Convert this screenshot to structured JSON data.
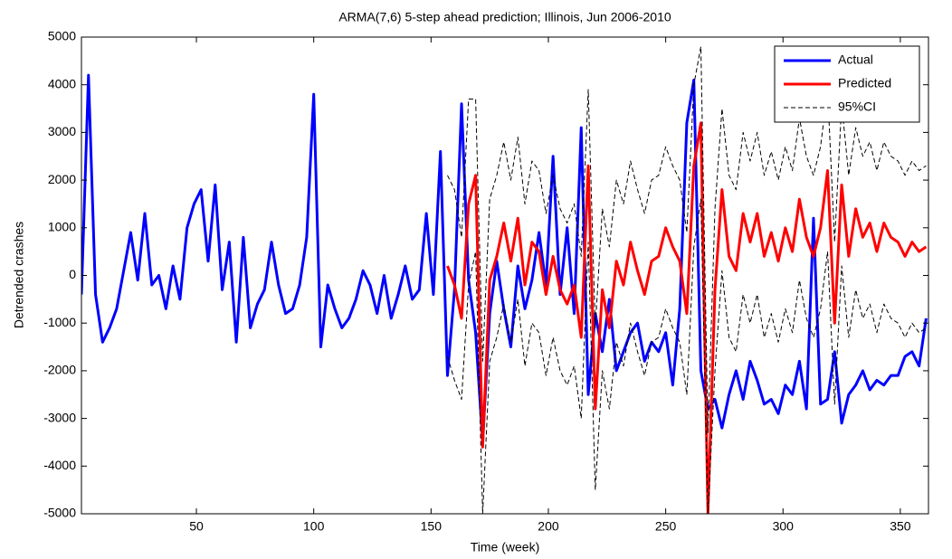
{
  "chart_data": {
    "type": "line",
    "title": "ARMA(7,6) 5-step ahead prediction; Illinois, Jun 2006-2010",
    "x_label": "Time (week)",
    "y_label": "Detrended crashes",
    "xlim": [
      1,
      362
    ],
    "xticks": [
      50,
      100,
      150,
      200,
      250,
      300,
      350
    ],
    "ylim": [
      -5000,
      5000
    ],
    "yticks": [
      -5000,
      -4000,
      -3000,
      -2000,
      -1000,
      0,
      1000,
      2000,
      3000,
      4000,
      5000
    ],
    "legend": "upper right",
    "x": [
      1,
      4,
      7,
      10,
      13,
      16,
      19,
      22,
      25,
      28,
      31,
      34,
      37,
      40,
      43,
      46,
      49,
      52,
      55,
      58,
      61,
      64,
      67,
      70,
      73,
      76,
      79,
      82,
      85,
      88,
      91,
      94,
      97,
      100,
      103,
      106,
      109,
      112,
      115,
      118,
      121,
      124,
      127,
      130,
      133,
      136,
      139,
      142,
      145,
      148,
      151,
      154,
      157,
      160,
      163,
      166,
      169,
      172,
      175,
      178,
      181,
      184,
      187,
      190,
      193,
      196,
      199,
      202,
      205,
      208,
      211,
      214,
      217,
      220,
      223,
      226,
      229,
      232,
      235,
      238,
      241,
      244,
      247,
      250,
      253,
      256,
      259,
      262,
      265,
      268,
      271,
      274,
      277,
      280,
      283,
      286,
      289,
      292,
      295,
      298,
      301,
      304,
      307,
      310,
      313,
      316,
      319,
      322,
      325,
      328,
      331,
      334,
      337,
      340,
      343,
      346,
      349,
      352,
      355,
      358,
      361
    ],
    "series": [
      {
        "name": "Actual",
        "color": "#0000ff",
        "dash": "solid",
        "width": 3,
        "values": [
          -400,
          4200,
          -400,
          -1400,
          -1100,
          -700,
          100,
          900,
          -100,
          1300,
          -200,
          0,
          -700,
          200,
          -500,
          1000,
          1500,
          1800,
          300,
          1900,
          -300,
          700,
          -1400,
          800,
          -1100,
          -600,
          -300,
          700,
          -200,
          -800,
          -700,
          -200,
          800,
          3800,
          -1500,
          -200,
          -700,
          -1100,
          -900,
          -500,
          100,
          -200,
          -800,
          0,
          -900,
          -400,
          200,
          -500,
          -300,
          1300,
          -400,
          2600,
          -2100,
          -300,
          3600,
          -100,
          -1200,
          -3500,
          -800,
          300,
          -700,
          -1500,
          200,
          -700,
          -100,
          900,
          -200,
          2500,
          -400,
          1000,
          -800,
          3100,
          -2500,
          -800,
          -1600,
          -500,
          -2000,
          -1600,
          -1200,
          -1000,
          -1800,
          -1400,
          -1600,
          -1200,
          -2300,
          -700,
          3200,
          4100,
          -2000,
          -2800,
          -2600,
          -3200,
          -2500,
          -2000,
          -2600,
          -1800,
          -2200,
          -2700,
          -2600,
          -2900,
          -2300,
          -2500,
          -1800,
          -2800,
          1200,
          -2700,
          -2600,
          -1600,
          -3100,
          -2500,
          -2300,
          -2000,
          -2400,
          -2200,
          -2300,
          -2100,
          -2100,
          -1700,
          -1600,
          -1900,
          -900
        ]
      },
      {
        "name": "Predicted",
        "color": "#ff0000",
        "dash": "solid",
        "width": 3,
        "values": [
          null,
          null,
          null,
          null,
          null,
          null,
          null,
          null,
          null,
          null,
          null,
          null,
          null,
          null,
          null,
          null,
          null,
          null,
          null,
          null,
          null,
          null,
          null,
          null,
          null,
          null,
          null,
          null,
          null,
          null,
          null,
          null,
          null,
          null,
          null,
          null,
          null,
          null,
          null,
          null,
          null,
          null,
          null,
          null,
          null,
          null,
          null,
          null,
          null,
          null,
          null,
          null,
          200,
          -200,
          -900,
          1500,
          2100,
          -3600,
          -100,
          400,
          1100,
          300,
          1200,
          -200,
          700,
          500,
          -400,
          400,
          -300,
          -600,
          -200,
          -1300,
          2300,
          -2800,
          -300,
          -1100,
          300,
          -200,
          700,
          100,
          -400,
          300,
          400,
          1000,
          600,
          300,
          -800,
          2300,
          3200,
          -5000,
          -300,
          1800,
          400,
          100,
          1300,
          700,
          1300,
          400,
          900,
          300,
          1000,
          500,
          1600,
          800,
          400,
          1000,
          2200,
          -1000,
          1900,
          400,
          1400,
          800,
          1100,
          500,
          1100,
          800,
          700,
          400,
          700,
          500,
          600
        ]
      },
      {
        "name": "95%CI",
        "color": "#000000",
        "dash": "dashed",
        "width": 1,
        "values": [
          null,
          null,
          null,
          null,
          null,
          null,
          null,
          null,
          null,
          null,
          null,
          null,
          null,
          null,
          null,
          null,
          null,
          null,
          null,
          null,
          null,
          null,
          null,
          null,
          null,
          null,
          null,
          null,
          null,
          null,
          null,
          null,
          null,
          null,
          null,
          null,
          null,
          null,
          null,
          null,
          null,
          null,
          null,
          null,
          null,
          null,
          null,
          null,
          null,
          null,
          null,
          null,
          2100,
          1800,
          800,
          3700,
          3700,
          -1800,
          1600,
          2100,
          2800,
          2000,
          2900,
          1500,
          2400,
          2200,
          1300,
          2100,
          1400,
          1100,
          1500,
          400,
          3900,
          -1100,
          1400,
          600,
          2000,
          1500,
          2400,
          1800,
          1300,
          2000,
          2100,
          2700,
          2300,
          2000,
          900,
          4000,
          4800,
          -3300,
          1400,
          3500,
          2100,
          1800,
          3000,
          2400,
          3000,
          2100,
          2600,
          2000,
          2700,
          2200,
          3300,
          2500,
          2100,
          2700,
          3900,
          700,
          3600,
          2100,
          3100,
          2500,
          2800,
          2200,
          2800,
          2500,
          2400,
          2100,
          2400,
          2200,
          2300
        ]
      },
      {
        "color": "#000000",
        "dash": "dashed",
        "width": 1,
        "values": [
          null,
          null,
          null,
          null,
          null,
          null,
          null,
          null,
          null,
          null,
          null,
          null,
          null,
          null,
          null,
          null,
          null,
          null,
          null,
          null,
          null,
          null,
          null,
          null,
          null,
          null,
          null,
          null,
          null,
          null,
          null,
          null,
          null,
          null,
          null,
          null,
          null,
          null,
          null,
          null,
          null,
          null,
          null,
          null,
          null,
          null,
          null,
          null,
          null,
          null,
          null,
          null,
          -1700,
          -2200,
          -2600,
          -200,
          500,
          -5000,
          -1800,
          -1300,
          -600,
          -1400,
          -500,
          -1900,
          -1000,
          -1200,
          -2100,
          -1300,
          -2000,
          -2300,
          -1900,
          -3000,
          700,
          -4500,
          -2000,
          -2800,
          -1400,
          -1900,
          -1000,
          -1600,
          -2100,
          -1400,
          -1300,
          -700,
          -1100,
          -1400,
          -2500,
          600,
          1600,
          -5000,
          -2000,
          100,
          -1300,
          -1600,
          -400,
          -1000,
          -400,
          -1300,
          -800,
          -1400,
          -700,
          -1200,
          -100,
          -900,
          -1300,
          -700,
          500,
          -2700,
          200,
          -1300,
          -300,
          -900,
          -600,
          -1200,
          -600,
          -900,
          -1000,
          -1300,
          -1000,
          -1200,
          -1100
        ]
      }
    ]
  }
}
